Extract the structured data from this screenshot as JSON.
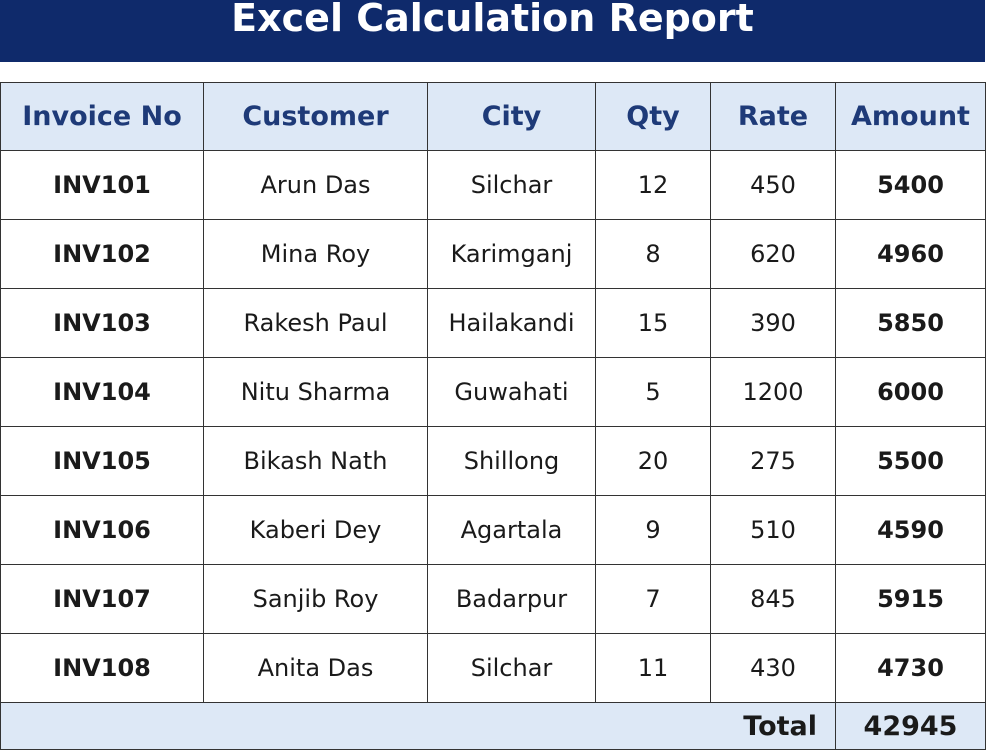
{
  "header": {
    "title": "Excel Calculation Report"
  },
  "table": {
    "columns": [
      "Invoice No",
      "Customer",
      "City",
      "Qty",
      "Rate",
      "Amount"
    ],
    "rows": [
      [
        "INV101",
        "Arun Das",
        "Silchar",
        12,
        450,
        5400
      ],
      [
        "INV102",
        "Mina Roy",
        "Karimganj",
        8,
        620,
        4960
      ],
      [
        "INV103",
        "Rakesh Paul",
        "Hailakandi",
        15,
        390,
        5850
      ],
      [
        "INV104",
        "Nitu Sharma",
        "Guwahati",
        5,
        1200,
        6000
      ],
      [
        "INV105",
        "Bikash Nath",
        "Shillong",
        20,
        275,
        5500
      ],
      [
        "INV106",
        "Kaberi Dey",
        "Agartala",
        9,
        510,
        4590
      ],
      [
        "INV107",
        "Sanjib Roy",
        "Badarpur",
        7,
        845,
        5915
      ],
      [
        "INV108",
        "Anita Das",
        "Silchar",
        11,
        430,
        4730
      ]
    ],
    "total": {
      "label": "Total",
      "value": 42945
    }
  }
}
